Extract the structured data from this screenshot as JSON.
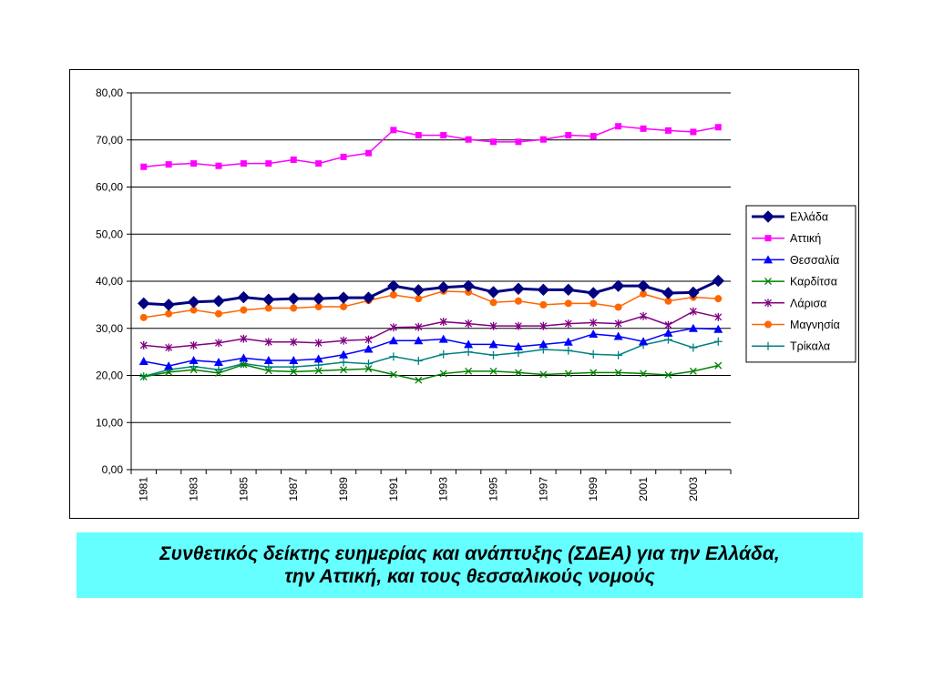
{
  "caption": {
    "line1": "Συνθετικός δείκτης ευημερίας και ανάπτυξης (ΣΔΕΑ) για την Ελλάδα,",
    "line2": "την Αττική, και τους θεσσαλικούς νομούς"
  },
  "chart_data": {
    "type": "line",
    "title": "",
    "xlabel": "",
    "ylabel": "",
    "ylim": [
      0,
      80
    ],
    "y_ticks": [
      "0,00",
      "10,00",
      "20,00",
      "30,00",
      "40,00",
      "50,00",
      "60,00",
      "70,00",
      "80,00"
    ],
    "y_tick_values": [
      0,
      10,
      20,
      30,
      40,
      50,
      60,
      70,
      80
    ],
    "x": [
      1981,
      1982,
      1983,
      1984,
      1985,
      1986,
      1987,
      1988,
      1989,
      1990,
      1991,
      1992,
      1993,
      1994,
      1995,
      1996,
      1997,
      1998,
      1999,
      2000,
      2001,
      2002,
      2003,
      2004
    ],
    "x_tick_labels": [
      "1981",
      "1983",
      "1985",
      "1987",
      "1989",
      "1991",
      "1993",
      "1995",
      "1997",
      "1999",
      "2001",
      "2003"
    ],
    "grid": "horizontal",
    "legend_position": "right",
    "series": [
      {
        "name": "Ελλάδα",
        "color": "#000080",
        "marker": "diamond",
        "width": 3,
        "values": [
          35.3,
          35.0,
          35.6,
          35.8,
          36.6,
          36.1,
          36.3,
          36.3,
          36.5,
          36.5,
          39.0,
          38.1,
          38.7,
          39.0,
          37.7,
          38.4,
          38.2,
          38.2,
          37.5,
          39.0,
          39.0,
          37.5,
          37.6,
          40.1
        ]
      },
      {
        "name": "Αττική",
        "color": "#ff00ff",
        "marker": "square",
        "width": 1.5,
        "values": [
          64.3,
          64.8,
          65.0,
          64.5,
          65.0,
          65.0,
          65.8,
          65.0,
          66.4,
          67.2,
          72.1,
          71.0,
          71.0,
          70.1,
          69.6,
          69.6,
          70.1,
          71.0,
          70.8,
          72.9,
          72.4,
          72.0,
          71.7,
          72.7
        ]
      },
      {
        "name": "Θεσσαλία",
        "color": "#0000ff",
        "marker": "triangle",
        "width": 1.5,
        "values": [
          23.0,
          22.0,
          23.2,
          22.8,
          23.7,
          23.2,
          23.2,
          23.5,
          24.4,
          25.6,
          27.4,
          27.4,
          27.7,
          26.6,
          26.6,
          26.1,
          26.6,
          27.1,
          28.8,
          28.3,
          27.2,
          29.0,
          30.0,
          29.8
        ]
      },
      {
        "name": "Καρδίτσα",
        "color": "#008000",
        "marker": "x",
        "width": 1.5,
        "values": [
          19.7,
          20.7,
          21.2,
          20.5,
          22.3,
          21.0,
          20.8,
          21.0,
          21.2,
          21.4,
          20.2,
          19.0,
          20.4,
          20.9,
          20.9,
          20.6,
          20.2,
          20.4,
          20.6,
          20.6,
          20.4,
          20.1,
          20.9,
          22.1
        ]
      },
      {
        "name": "Λάρισα",
        "color": "#800080",
        "marker": "star",
        "width": 1.5,
        "values": [
          26.4,
          25.9,
          26.4,
          26.9,
          27.8,
          27.1,
          27.1,
          26.9,
          27.4,
          27.6,
          30.2,
          30.3,
          31.4,
          31.0,
          30.5,
          30.5,
          30.5,
          31.0,
          31.2,
          31.0,
          32.6,
          30.7,
          33.6,
          32.4
        ]
      },
      {
        "name": "Μαγνησία",
        "color": "#ff6600",
        "marker": "circle",
        "width": 1.5,
        "values": [
          32.3,
          33.1,
          33.9,
          33.1,
          33.9,
          34.3,
          34.3,
          34.6,
          34.6,
          35.9,
          37.1,
          36.3,
          37.9,
          37.7,
          35.5,
          35.8,
          35.0,
          35.3,
          35.3,
          34.5,
          37.3,
          35.8,
          36.6,
          36.3
        ]
      },
      {
        "name": "Τρίκαλα",
        "color": "#008080",
        "marker": "plus",
        "width": 1.5,
        "values": [
          19.8,
          21.2,
          21.9,
          21.2,
          22.5,
          21.8,
          21.8,
          22.2,
          22.8,
          22.5,
          24.0,
          23.1,
          24.5,
          25.0,
          24.3,
          24.8,
          25.5,
          25.3,
          24.5,
          24.3,
          26.5,
          27.6,
          25.9,
          27.2
        ]
      }
    ]
  }
}
